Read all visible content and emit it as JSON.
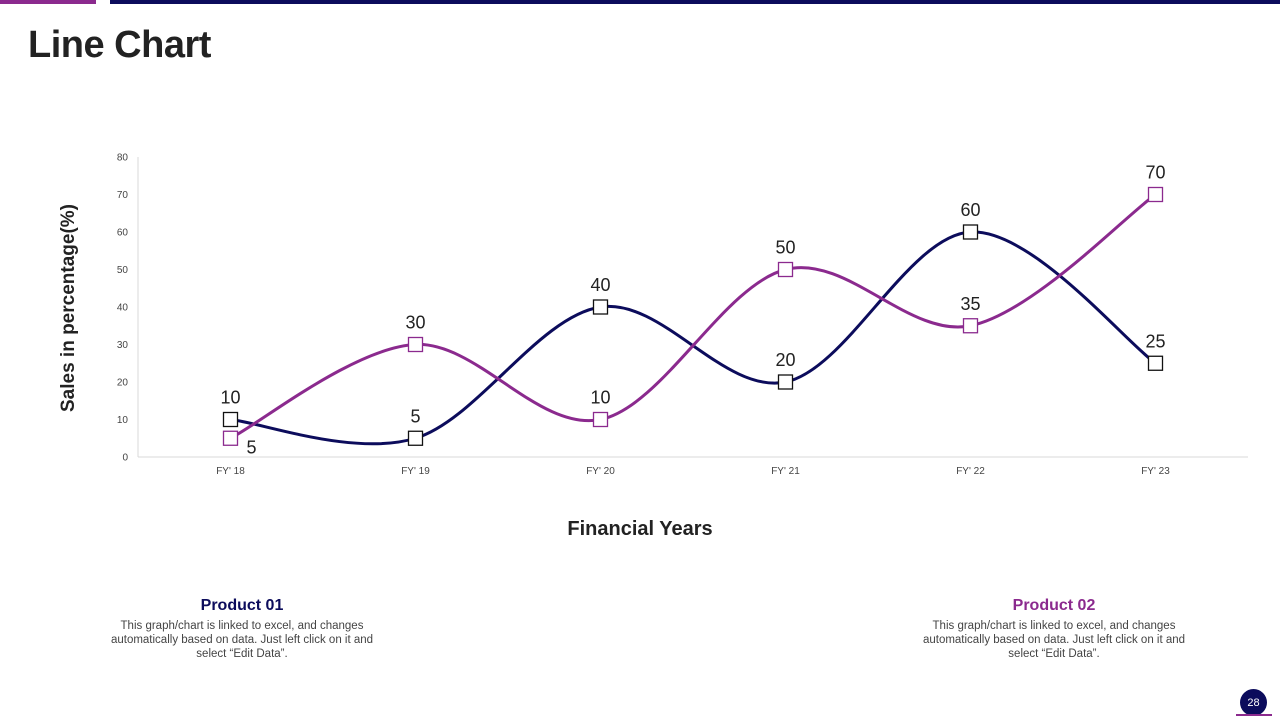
{
  "slide": {
    "title": "Line Chart",
    "page_number": "28"
  },
  "colors": {
    "product_01": "#0c0c5c",
    "product_02": "#8b2a8e"
  },
  "chart_data": {
    "type": "line",
    "title": "",
    "xlabel": "Financial Years",
    "ylabel": "Sales in percentage(%)",
    "categories": [
      "FY' 18",
      "FY' 19",
      "FY' 20",
      "FY' 21",
      "FY' 22",
      "FY' 23"
    ],
    "ylim": [
      0,
      80
    ],
    "yticks": [
      0,
      10,
      20,
      30,
      40,
      50,
      60,
      70,
      80
    ],
    "smooth": true,
    "marker": "square",
    "grid": false,
    "legend": "none",
    "series": [
      {
        "values": [
          10,
          5,
          40,
          20,
          60,
          25
        ],
        "color": "#0c0c5c"
      },
      {
        "values": [
          5,
          30,
          10,
          50,
          35,
          70
        ],
        "color": "#8b2a8e"
      }
    ]
  },
  "products": [
    {
      "title": "Product 01",
      "description": "This graph/chart is linked to excel, and changes automatically based on data. Just left click on it and select “Edit Data”."
    },
    {
      "title": "Product 02",
      "description": "This graph/chart is linked to excel, and changes automatically based on data. Just left click on it and select “Edit Data”."
    }
  ]
}
